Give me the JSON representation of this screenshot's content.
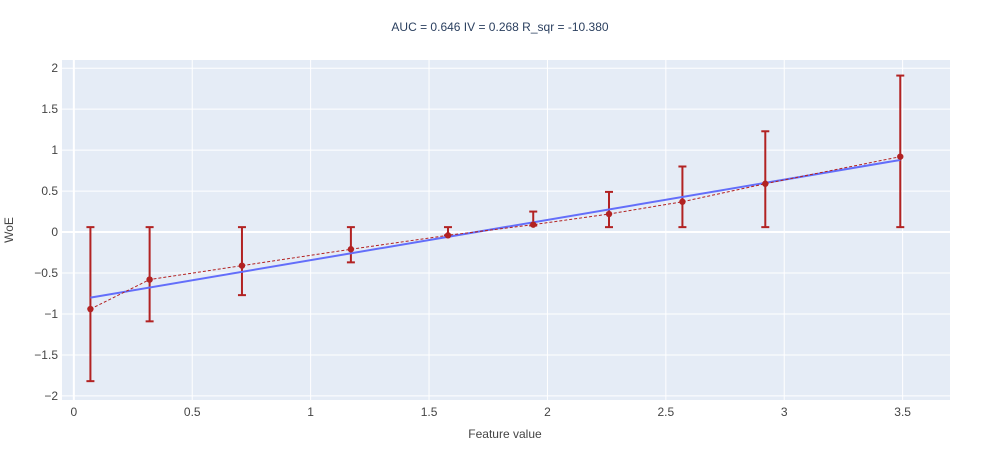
{
  "chart_data": {
    "type": "scatter",
    "title": "AUC = 0.646 IV = 0.268 R_sqr = -10.380",
    "xlabel": "Feature value",
    "ylabel": "WoE",
    "xlim": [
      -0.05,
      3.7
    ],
    "ylim": [
      -2.05,
      2.1
    ],
    "x_ticks": [
      0,
      0.5,
      1,
      1.5,
      2,
      2.5,
      3,
      3.5
    ],
    "x_tick_labels": [
      "0",
      "0.5",
      "1",
      "1.5",
      "2",
      "2.5",
      "3",
      "3.5"
    ],
    "y_ticks": [
      -2,
      -1.5,
      -1,
      -0.5,
      0,
      0.5,
      1,
      1.5,
      2
    ],
    "y_tick_labels": [
      "−2",
      "−1.5",
      "−1",
      "−0.5",
      "0",
      "0.5",
      "1",
      "1.5",
      "2"
    ],
    "grid": true,
    "series": [
      {
        "mode": "markers+dashed-line+error-bars",
        "color": "#b22222",
        "points": [
          {
            "x": 0.07,
            "y": -0.94,
            "y_low": -1.82,
            "y_high": 0.06
          },
          {
            "x": 0.32,
            "y": -0.58,
            "y_low": -1.09,
            "y_high": 0.06
          },
          {
            "x": 0.71,
            "y": -0.41,
            "y_low": -0.77,
            "y_high": 0.06
          },
          {
            "x": 1.17,
            "y": -0.21,
            "y_low": -0.37,
            "y_high": 0.06
          },
          {
            "x": 1.58,
            "y": -0.04,
            "y_low": -0.04,
            "y_high": 0.06
          },
          {
            "x": 1.94,
            "y": 0.09,
            "y_low": 0.08,
            "y_high": 0.25
          },
          {
            "x": 2.26,
            "y": 0.22,
            "y_low": 0.06,
            "y_high": 0.49
          },
          {
            "x": 2.57,
            "y": 0.37,
            "y_low": 0.06,
            "y_high": 0.8
          },
          {
            "x": 2.92,
            "y": 0.59,
            "y_low": 0.06,
            "y_high": 1.23
          },
          {
            "x": 3.49,
            "y": 0.92,
            "y_low": 0.06,
            "y_high": 1.91
          }
        ]
      },
      {
        "mode": "line",
        "color": "#636efa",
        "x": [
          0.07,
          3.49
        ],
        "y": [
          -0.8,
          0.88
        ]
      }
    ],
    "colors": {
      "plot_background": "#e5ecf6",
      "grid": "#ffffff",
      "text": "#444444",
      "title": "#2a3f5f"
    }
  }
}
